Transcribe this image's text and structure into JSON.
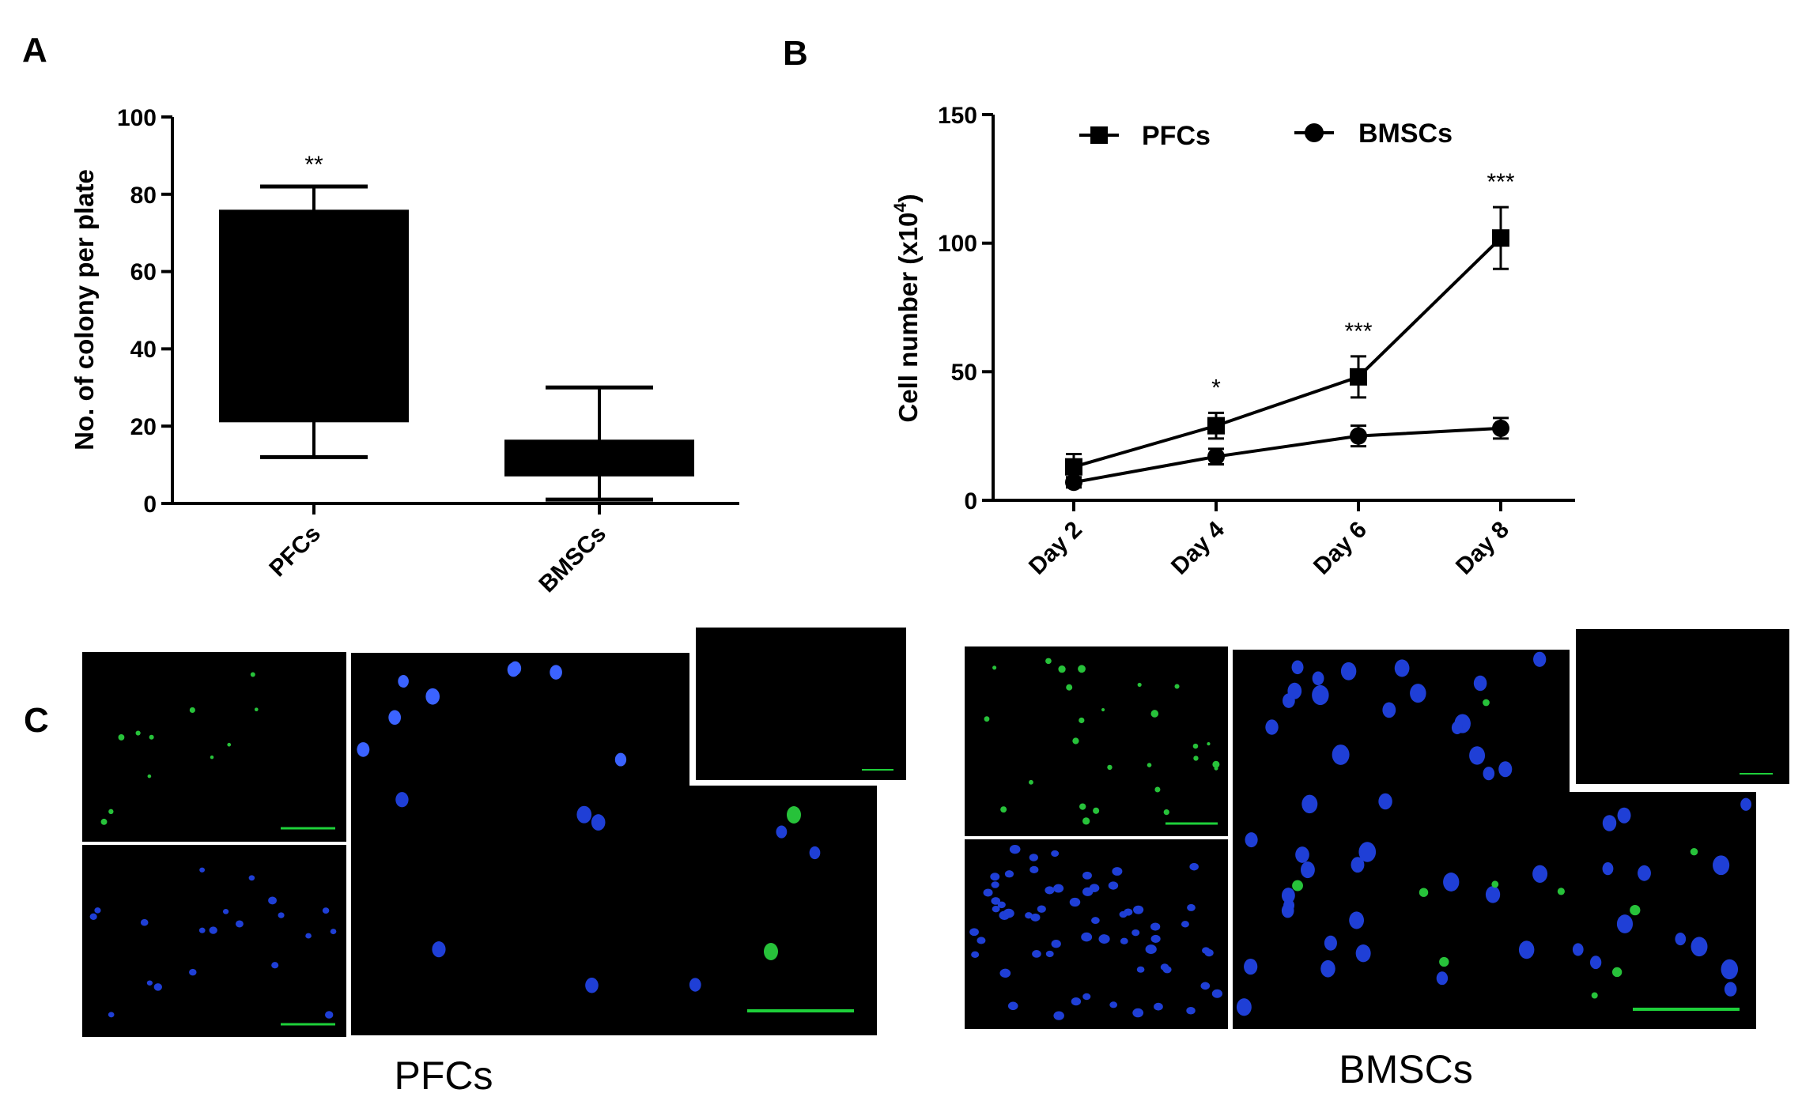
{
  "panels": {
    "A": "A",
    "B": "B",
    "C": "C"
  },
  "chart_data": [
    {
      "type": "box",
      "panel": "A",
      "ylabel": "No. of colony per plate",
      "ylim": [
        0,
        100
      ],
      "yticks": [
        "0",
        "20",
        "40",
        "60",
        "80",
        "100"
      ],
      "categories": [
        "PFCs",
        "BMSCs"
      ],
      "boxes": [
        {
          "category": "PFCs",
          "min": 12,
          "q1": 21,
          "q3": 76,
          "max": 82,
          "significance": "**"
        },
        {
          "category": "BMSCs",
          "min": 1,
          "q1": 7,
          "q3": 16.5,
          "max": 30,
          "significance": ""
        }
      ],
      "fill_color": "#000000"
    },
    {
      "type": "line",
      "panel": "B",
      "ylabel_main": "Cell number (x10",
      "ylabel_sup": "4",
      "ylabel_end": ")",
      "ylim": [
        0,
        150
      ],
      "yticks": [
        "0",
        "50",
        "100",
        "150"
      ],
      "categories": [
        "Day 2",
        "Day 4",
        "Day 6",
        "Day 8"
      ],
      "series": [
        {
          "name": "PFCs",
          "marker": "square",
          "values": [
            13,
            29,
            48,
            102
          ],
          "errors": [
            5,
            5,
            8,
            12
          ]
        },
        {
          "name": "BMSCs",
          "marker": "circle",
          "values": [
            7,
            17,
            25,
            28
          ],
          "errors": [
            2,
            3,
            4,
            4
          ]
        }
      ],
      "significance": [
        "",
        "*",
        "***",
        "***"
      ],
      "legend_position": "top"
    }
  ],
  "micrographs": {
    "pfcs_caption": "PFCs",
    "bmscs_caption": "BMSCs",
    "colors": {
      "background": "#000000",
      "nucleus_blue": "#1f3fd6",
      "nucleus_blue_bright": "#3b63ff",
      "signal_green": "#27c23a",
      "scale_bar": "#1ed03a"
    }
  }
}
